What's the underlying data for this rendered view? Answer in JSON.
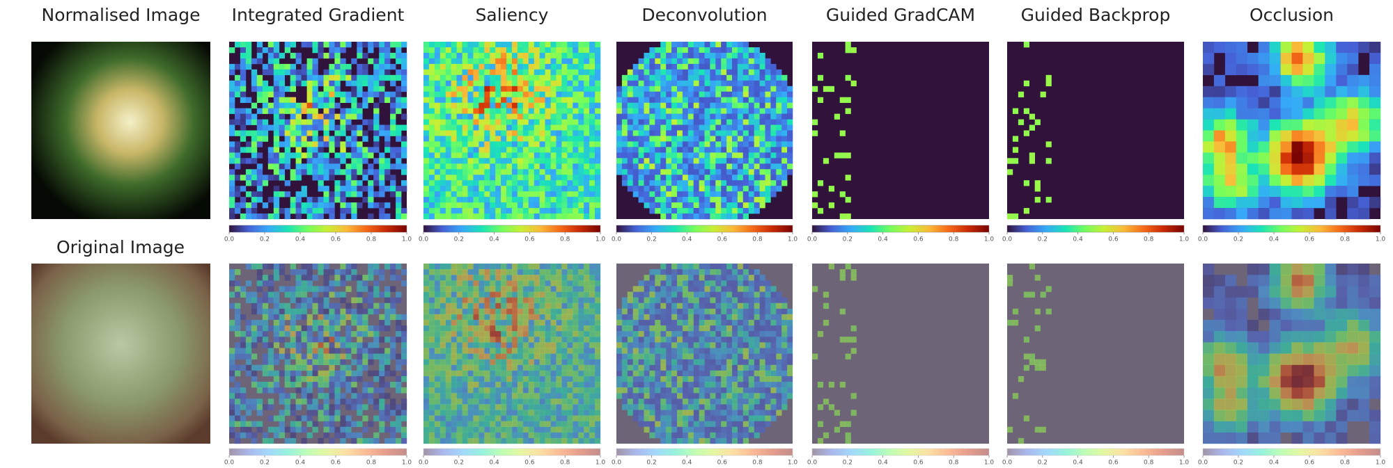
{
  "column_titles": [
    "Normalised Image",
    "Integrated Gradient",
    "Saliency",
    "Deconvolution",
    "Guided GradCAM",
    "Guided Backprop",
    "Occlusion"
  ],
  "row_labels": [
    "Original Image"
  ],
  "colorbar_ticks": [
    {
      "value": 0,
      "label": "0.0"
    },
    {
      "value": 0.2,
      "label": "0.2"
    },
    {
      "value": 0.4,
      "label": "0.4"
    },
    {
      "value": 0.6,
      "label": "0.6"
    },
    {
      "value": 0.8,
      "label": "0.8"
    },
    {
      "value": 1,
      "label": "1.0"
    }
  ]
}
